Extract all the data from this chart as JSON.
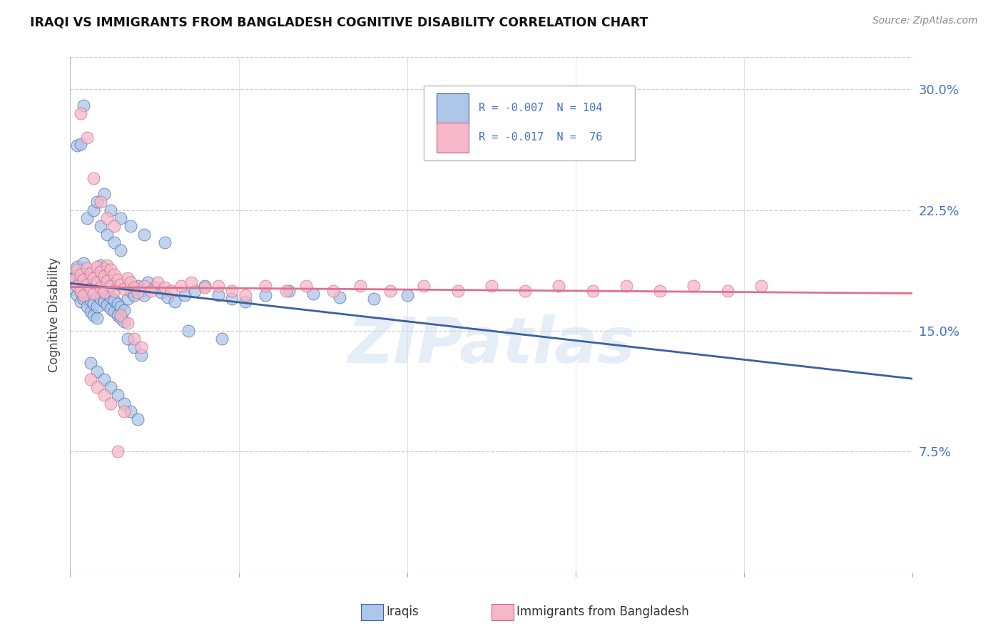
{
  "title": "IRAQI VS IMMIGRANTS FROM BANGLADESH COGNITIVE DISABILITY CORRELATION CHART",
  "source": "Source: ZipAtlas.com",
  "ylabel": "Cognitive Disability",
  "ytick_labels": [
    "7.5%",
    "15.0%",
    "22.5%",
    "30.0%"
  ],
  "ytick_values": [
    0.075,
    0.15,
    0.225,
    0.3
  ],
  "xlim": [
    0.0,
    0.25
  ],
  "ylim": [
    0.0,
    0.32
  ],
  "legend_label1": "Iraqis",
  "legend_label2": "Immigrants from Bangladesh",
  "color_blue": "#aec6e8",
  "color_pink": "#f4b8c8",
  "line_color_blue": "#3a5fa0",
  "line_color_pink": "#e07090",
  "watermark": "ZIPatlas",
  "blue_scatter_x": [
    0.001,
    0.001,
    0.001,
    0.002,
    0.002,
    0.002,
    0.002,
    0.003,
    0.003,
    0.003,
    0.004,
    0.004,
    0.004,
    0.004,
    0.005,
    0.005,
    0.005,
    0.005,
    0.006,
    0.006,
    0.006,
    0.006,
    0.007,
    0.007,
    0.007,
    0.007,
    0.008,
    0.008,
    0.008,
    0.008,
    0.009,
    0.009,
    0.009,
    0.009,
    0.01,
    0.01,
    0.01,
    0.01,
    0.011,
    0.011,
    0.011,
    0.012,
    0.012,
    0.012,
    0.013,
    0.013,
    0.014,
    0.014,
    0.015,
    0.015,
    0.016,
    0.016,
    0.017,
    0.018,
    0.019,
    0.02,
    0.021,
    0.022,
    0.023,
    0.025,
    0.027,
    0.029,
    0.031,
    0.034,
    0.037,
    0.04,
    0.044,
    0.048,
    0.052,
    0.058,
    0.065,
    0.072,
    0.08,
    0.09,
    0.1,
    0.002,
    0.003,
    0.005,
    0.007,
    0.009,
    0.011,
    0.013,
    0.015,
    0.017,
    0.019,
    0.021,
    0.004,
    0.006,
    0.008,
    0.01,
    0.012,
    0.014,
    0.016,
    0.018,
    0.02,
    0.008,
    0.01,
    0.012,
    0.015,
    0.018,
    0.022,
    0.028,
    0.035,
    0.045
  ],
  "blue_scatter_y": [
    0.18,
    0.183,
    0.176,
    0.172,
    0.178,
    0.185,
    0.19,
    0.168,
    0.175,
    0.182,
    0.17,
    0.177,
    0.184,
    0.192,
    0.165,
    0.172,
    0.179,
    0.186,
    0.162,
    0.169,
    0.176,
    0.183,
    0.16,
    0.167,
    0.174,
    0.181,
    0.158,
    0.165,
    0.172,
    0.179,
    0.17,
    0.177,
    0.184,
    0.191,
    0.168,
    0.175,
    0.182,
    0.189,
    0.166,
    0.173,
    0.18,
    0.164,
    0.171,
    0.178,
    0.162,
    0.169,
    0.16,
    0.167,
    0.158,
    0.165,
    0.156,
    0.163,
    0.17,
    0.175,
    0.172,
    0.178,
    0.175,
    0.172,
    0.18,
    0.177,
    0.174,
    0.171,
    0.168,
    0.172,
    0.175,
    0.178,
    0.172,
    0.17,
    0.168,
    0.172,
    0.175,
    0.173,
    0.171,
    0.17,
    0.172,
    0.265,
    0.266,
    0.22,
    0.225,
    0.215,
    0.21,
    0.205,
    0.2,
    0.145,
    0.14,
    0.135,
    0.29,
    0.13,
    0.125,
    0.12,
    0.115,
    0.11,
    0.105,
    0.1,
    0.095,
    0.23,
    0.235,
    0.225,
    0.22,
    0.215,
    0.21,
    0.205,
    0.15,
    0.145
  ],
  "pink_scatter_x": [
    0.001,
    0.002,
    0.002,
    0.003,
    0.003,
    0.004,
    0.004,
    0.005,
    0.005,
    0.006,
    0.006,
    0.007,
    0.007,
    0.008,
    0.008,
    0.009,
    0.009,
    0.01,
    0.01,
    0.011,
    0.011,
    0.012,
    0.012,
    0.013,
    0.013,
    0.014,
    0.015,
    0.016,
    0.017,
    0.018,
    0.019,
    0.02,
    0.022,
    0.024,
    0.026,
    0.028,
    0.03,
    0.033,
    0.036,
    0.04,
    0.044,
    0.048,
    0.052,
    0.058,
    0.064,
    0.07,
    0.078,
    0.086,
    0.095,
    0.105,
    0.115,
    0.125,
    0.135,
    0.145,
    0.155,
    0.165,
    0.175,
    0.185,
    0.195,
    0.205,
    0.003,
    0.005,
    0.007,
    0.009,
    0.011,
    0.013,
    0.015,
    0.017,
    0.019,
    0.021,
    0.006,
    0.008,
    0.01,
    0.012,
    0.014,
    0.016
  ],
  "pink_scatter_y": [
    0.182,
    0.178,
    0.188,
    0.175,
    0.185,
    0.172,
    0.182,
    0.179,
    0.189,
    0.176,
    0.186,
    0.183,
    0.173,
    0.18,
    0.19,
    0.177,
    0.187,
    0.184,
    0.174,
    0.181,
    0.191,
    0.178,
    0.188,
    0.175,
    0.185,
    0.182,
    0.179,
    0.176,
    0.183,
    0.18,
    0.177,
    0.174,
    0.178,
    0.175,
    0.18,
    0.177,
    0.175,
    0.178,
    0.18,
    0.177,
    0.178,
    0.175,
    0.172,
    0.178,
    0.175,
    0.178,
    0.175,
    0.178,
    0.175,
    0.178,
    0.175,
    0.178,
    0.175,
    0.178,
    0.175,
    0.178,
    0.175,
    0.178,
    0.175,
    0.178,
    0.285,
    0.27,
    0.245,
    0.23,
    0.22,
    0.215,
    0.16,
    0.155,
    0.145,
    0.14,
    0.12,
    0.115,
    0.11,
    0.105,
    0.075,
    0.1
  ]
}
